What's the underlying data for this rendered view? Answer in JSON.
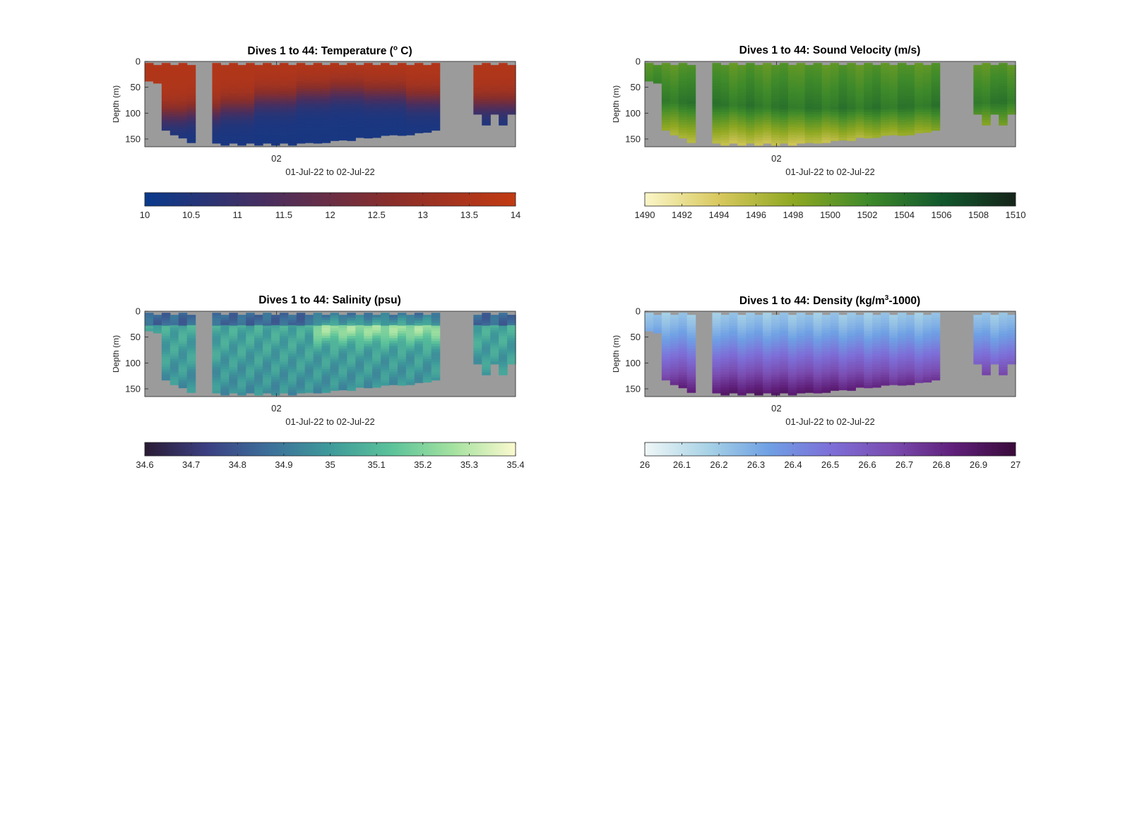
{
  "chart_data": [
    {
      "type": "heatmap",
      "title": {
        "pre": "Dives 1 to 44: Temperature (",
        "sup": "o",
        "post": " C)"
      },
      "ylabel": "Depth (m)",
      "xlabel": "01-Jul-22 to 02-Jul-22",
      "xtick_labels": [
        "02"
      ],
      "ytick_labels": [
        "0",
        "50",
        "100",
        "150"
      ],
      "ylim": [
        0,
        165
      ],
      "grid": false,
      "colorbar": {
        "ticks": [
          "10",
          "10.5",
          "11",
          "11.5",
          "12",
          "12.5",
          "13",
          "13.5",
          "14"
        ],
        "range": [
          10,
          14
        ],
        "colors": [
          "#0a3a8c",
          "#4a2e5e",
          "#8a2e2a",
          "#c23a12"
        ]
      },
      "field": {
        "surface": 13.6,
        "bottom": 10.3,
        "thermocline_depth": [
          100,
          95,
          85,
          70,
          60,
          55,
          60,
          70,
          80,
          80
        ]
      },
      "dive_count": 44
    },
    {
      "type": "heatmap",
      "title": {
        "pre": "Dives 1 to 44: Sound Velocity (m/s)",
        "sup": "",
        "post": ""
      },
      "ylabel": "Depth (m)",
      "xlabel": "01-Jul-22 to 02-Jul-22",
      "xtick_labels": [
        "02"
      ],
      "ytick_labels": [
        "0",
        "50",
        "100",
        "150"
      ],
      "ylim": [
        0,
        165
      ],
      "grid": false,
      "colorbar": {
        "ticks": [
          "1490",
          "1492",
          "1494",
          "1496",
          "1498",
          "1500",
          "1502",
          "1504",
          "1506",
          "1508",
          "1510"
        ],
        "range": [
          1490,
          1510
        ],
        "colors": [
          "#fbf6c8",
          "#d8c85e",
          "#8fa822",
          "#3f8a2a",
          "#12582c",
          "#16241a"
        ]
      },
      "field": {
        "surface": 1500.5,
        "mid": 1503.5,
        "bottom": 1494.5
      },
      "dive_count": 44
    },
    {
      "type": "heatmap",
      "title": {
        "pre": "Dives 1 to 44: Salinity (psu)",
        "sup": "",
        "post": ""
      },
      "ylabel": "Depth (m)",
      "xlabel": "01-Jul-22 to 02-Jul-22",
      "xtick_labels": [
        "02"
      ],
      "ytick_labels": [
        "0",
        "50",
        "100",
        "150"
      ],
      "ylim": [
        0,
        165
      ],
      "grid": false,
      "colorbar": {
        "ticks": [
          "34.6",
          "34.7",
          "34.8",
          "34.9",
          "35",
          "35.1",
          "35.2",
          "35.3",
          "35.4"
        ],
        "range": [
          34.6,
          35.4
        ],
        "colors": [
          "#2a1b34",
          "#3b3f82",
          "#3d6f9a",
          "#3e9a9a",
          "#5cc39a",
          "#a5e2a0",
          "#fbf9cf"
        ]
      },
      "field": {
        "surface": 34.85,
        "mid": 35.05,
        "bottom": 34.95
      },
      "dive_count": 44
    },
    {
      "type": "heatmap",
      "title": {
        "pre": "Dives 1 to 44: Density (kg/m",
        "sup": "3",
        "post": "-1000)"
      },
      "ylabel": "Depth (m)",
      "xlabel": "01-Jul-22 to 02-Jul-22",
      "xtick_labels": [
        "02"
      ],
      "ytick_labels": [
        "0",
        "50",
        "100",
        "150"
      ],
      "ylim": [
        0,
        165
      ],
      "grid": false,
      "colorbar": {
        "ticks": [
          "26",
          "26.1",
          "26.2",
          "26.3",
          "26.4",
          "26.5",
          "26.6",
          "26.7",
          "26.8",
          "26.9",
          "27"
        ],
        "range": [
          26,
          27
        ],
        "colors": [
          "#f0f7f7",
          "#a9d3e6",
          "#6fa0e4",
          "#7d6fd8",
          "#7a4cb0",
          "#5f1f7a",
          "#3a0b3a"
        ]
      },
      "field": {
        "surface": 26.2,
        "mid": 26.45,
        "bottom": 26.9
      },
      "dive_count": 44
    }
  ]
}
